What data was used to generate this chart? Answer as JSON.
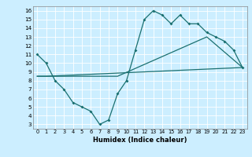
{
  "title": "",
  "xlabel": "Humidex (Indice chaleur)",
  "bg_color": "#cceeff",
  "line_color": "#1a7070",
  "xlim": [
    -0.5,
    23.5
  ],
  "ylim": [
    2.5,
    16.5
  ],
  "xticks": [
    0,
    1,
    2,
    3,
    4,
    5,
    6,
    7,
    8,
    9,
    10,
    11,
    12,
    13,
    14,
    15,
    16,
    17,
    18,
    19,
    20,
    21,
    22,
    23
  ],
  "yticks": [
    3,
    4,
    5,
    6,
    7,
    8,
    9,
    10,
    11,
    12,
    13,
    14,
    15,
    16
  ],
  "line1_x": [
    0,
    1,
    2,
    3,
    4,
    5,
    6,
    7,
    8,
    9,
    10,
    11,
    12,
    13,
    14,
    15,
    16,
    17,
    18,
    19,
    20,
    21,
    22,
    23
  ],
  "line1_y": [
    11,
    10,
    8,
    7,
    5.5,
    5,
    4.5,
    3,
    3.5,
    6.5,
    8,
    11.5,
    15,
    16,
    15.5,
    14.5,
    15.5,
    14.5,
    14.5,
    13.5,
    13,
    12.5,
    11.5,
    9.5
  ],
  "line2_x": [
    0,
    1,
    23
  ],
  "line2_y": [
    8.5,
    8.5,
    9.5
  ],
  "line3_x": [
    0,
    9,
    19,
    23
  ],
  "line3_y": [
    8.5,
    8.5,
    13,
    9.5
  ]
}
